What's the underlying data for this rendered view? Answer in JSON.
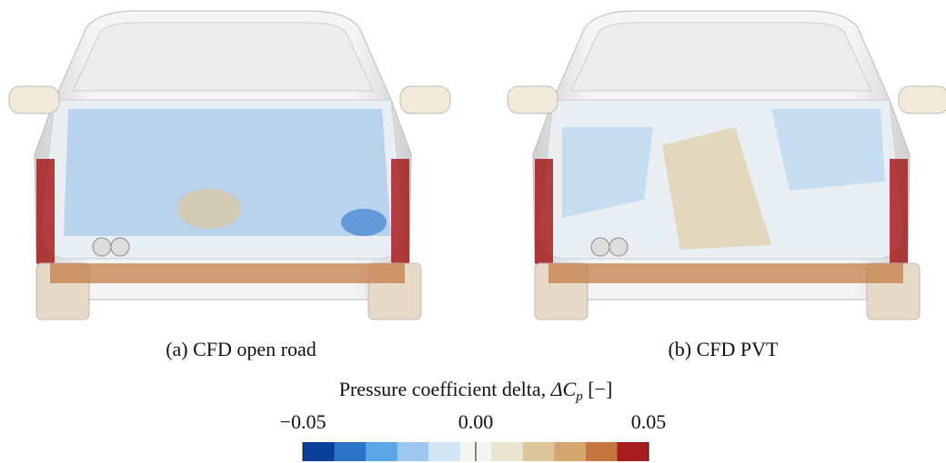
{
  "figure": {
    "panels": [
      {
        "caption": "(a) CFD open road"
      },
      {
        "caption": "(b) CFD PVT"
      }
    ],
    "colorbar": {
      "title": "Pressure coefficient delta, ",
      "symbol": "ΔC",
      "subscript": "p",
      "unit": " [−]",
      "lim": [
        -0.05,
        0.05
      ],
      "ticks": [
        {
          "value": -0.05,
          "label": "−0.05"
        },
        {
          "value": 0,
          "label": "0.00"
        },
        {
          "value": 0.05,
          "label": "0.05"
        }
      ],
      "colors": [
        "#0b3f9a",
        "#2a73c9",
        "#5aa5e6",
        "#9cc8f0",
        "#d2e6f6",
        "#f4f4f1",
        "#e8e4cf",
        "#ddc69a",
        "#d4a56c",
        "#c3773f",
        "#a71d1d"
      ]
    }
  }
}
